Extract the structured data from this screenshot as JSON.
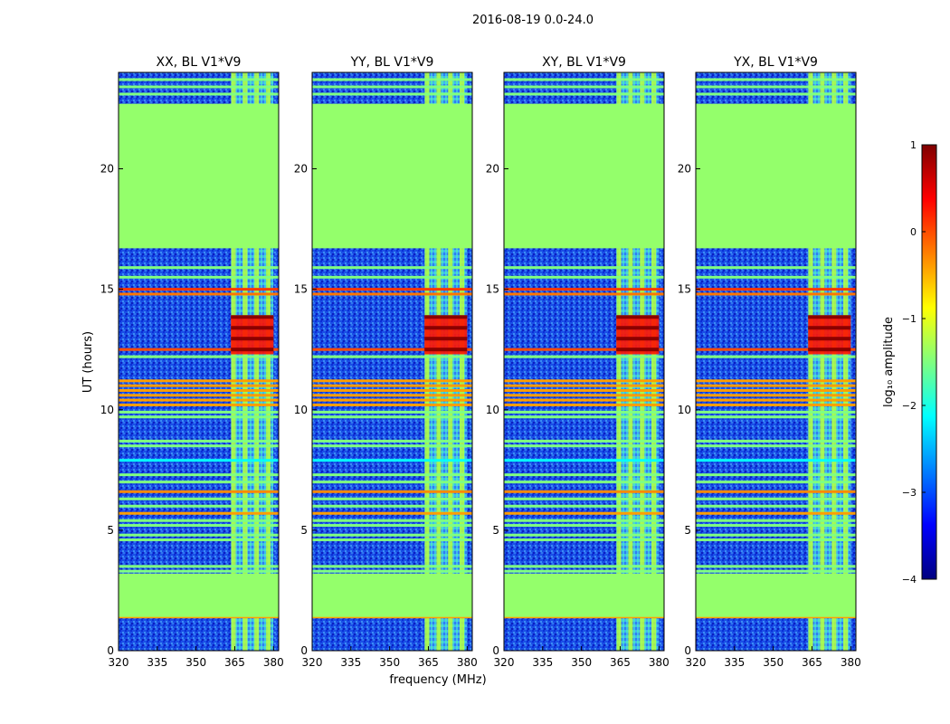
{
  "figure": {
    "title": "2016-08-19 0.0-24.0",
    "xlabel": "frequency (MHz)",
    "ylabel": "UT (hours)",
    "colorbar_label": "log₁₀ amplitude"
  },
  "colors": {
    "flat_region": "#9dff5a",
    "background_noise": "#1a56e8"
  },
  "chart_data": {
    "type": "heatmap",
    "xlim": [
      320,
      382
    ],
    "ylim": [
      0,
      24
    ],
    "xticks": [
      320,
      335,
      350,
      365,
      380
    ],
    "yticks": [
      0,
      5,
      10,
      15,
      20
    ],
    "clim": [
      -4,
      1
    ],
    "colorbar_ticks": [
      -4,
      -3,
      -2,
      -1,
      0,
      1
    ],
    "colormap": "jet",
    "panels": [
      {
        "title": "XX, BL V1*V9"
      },
      {
        "title": "YY, BL V1*V9"
      },
      {
        "title": "XY, BL V1*V9"
      },
      {
        "title": "YX, BL V1*V9"
      }
    ],
    "band": [
      363.5,
      380.0
    ],
    "band_stripes": [
      364.5,
      369.0,
      373.5,
      378.0
    ],
    "flagged_blocks": [
      {
        "t0": 1.4,
        "t1": 3.2,
        "value": -1.4
      },
      {
        "t0": 16.7,
        "t1": 22.7,
        "value": -1.4
      }
    ],
    "rfi_lines": [
      {
        "t": 23.7,
        "value": -1.5
      },
      {
        "t": 23.4,
        "value": -1.5
      },
      {
        "t": 23.1,
        "value": -1.5
      },
      {
        "t": 15.9,
        "value": -1.5
      },
      {
        "t": 15.5,
        "value": -1.5
      },
      {
        "t": 15.0,
        "value": 0.1
      },
      {
        "t": 14.8,
        "value": -0.2
      },
      {
        "t": 12.5,
        "value": 0.0
      },
      {
        "t": 12.2,
        "value": -1.5
      },
      {
        "t": 11.2,
        "value": -0.4
      },
      {
        "t": 11.0,
        "value": -0.4
      },
      {
        "t": 10.8,
        "value": -0.4
      },
      {
        "t": 10.6,
        "value": -0.4
      },
      {
        "t": 10.4,
        "value": -0.4
      },
      {
        "t": 10.2,
        "value": -0.4
      },
      {
        "t": 9.9,
        "value": -1.5
      },
      {
        "t": 9.7,
        "value": -1.5
      },
      {
        "t": 8.7,
        "value": -1.5
      },
      {
        "t": 8.5,
        "value": -1.5
      },
      {
        "t": 7.9,
        "value": -2.1
      },
      {
        "t": 7.3,
        "value": -1.5
      },
      {
        "t": 7.0,
        "value": -1.5
      },
      {
        "t": 6.6,
        "value": -0.3
      },
      {
        "t": 6.3,
        "value": -1.5
      },
      {
        "t": 6.0,
        "value": -1.5
      },
      {
        "t": 5.7,
        "value": -0.4
      },
      {
        "t": 5.4,
        "value": -1.5
      },
      {
        "t": 5.2,
        "value": -1.5
      },
      {
        "t": 4.8,
        "value": -1.5
      },
      {
        "t": 4.6,
        "value": -1.5
      },
      {
        "t": 3.5,
        "value": -1.5
      },
      {
        "t": 3.3,
        "value": -1.5
      },
      {
        "t": 2.6,
        "value": -1.5
      },
      {
        "t": 2.0,
        "value": -1.5
      },
      {
        "t": 1.4,
        "value": -0.4
      }
    ],
    "rfi_blocks": [
      {
        "t0": 12.3,
        "t1": 13.9,
        "f0": 363.5,
        "f1": 380.0,
        "value": 0.3
      }
    ]
  }
}
